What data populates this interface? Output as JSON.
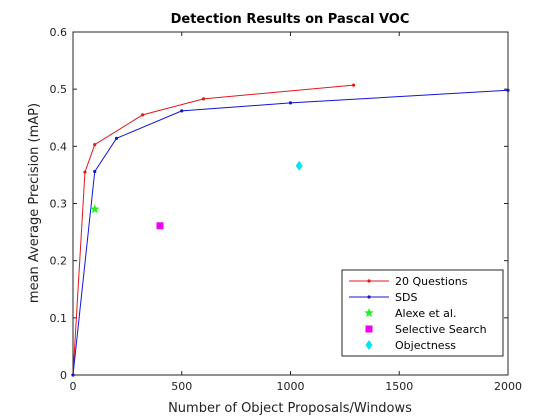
{
  "chart_data": {
    "type": "line",
    "title": "Detection Results on Pascal VOC",
    "xlabel": "Number of Object Proposals/Windows",
    "ylabel": "mean Average Precision (mAP)",
    "xlim": [
      0,
      2000
    ],
    "ylim": [
      0,
      0.6
    ],
    "xticks": [
      0,
      500,
      1000,
      1500,
      2000
    ],
    "xtick_labels": [
      "0",
      "500",
      "1000",
      "1500",
      "2000"
    ],
    "yticks": [
      0,
      0.1,
      0.2,
      0.3,
      0.4,
      0.5,
      0.6
    ],
    "ytick_labels": [
      "0",
      "0.1",
      "0.2",
      "0.3",
      "0.4",
      "0.5",
      "0.6"
    ],
    "grid": false,
    "legend_position": "bottom-right",
    "series": [
      {
        "name": "20 Questions",
        "kind": "line",
        "color": "#e4181c",
        "marker": "dot",
        "x": [
          0,
          55,
          100,
          320,
          600,
          1290
        ],
        "y": [
          0,
          0.355,
          0.403,
          0.455,
          0.483,
          0.507
        ]
      },
      {
        "name": "SDS",
        "kind": "line",
        "color": "#1414d8",
        "marker": "dot",
        "x": [
          0,
          100,
          200,
          500,
          1000,
          2000
        ],
        "y": [
          0,
          0.356,
          0.414,
          0.462,
          0.476,
          0.498
        ]
      },
      {
        "name": "Alexe et al.",
        "kind": "point",
        "color": "#22ee22",
        "marker": "star",
        "x": [
          100
        ],
        "y": [
          0.29
        ]
      },
      {
        "name": "Selective Search",
        "kind": "point",
        "color": "#ee00ee",
        "marker": "square",
        "x": [
          400
        ],
        "y": [
          0.261
        ]
      },
      {
        "name": "Objectness",
        "kind": "point",
        "color": "#00e8ee",
        "marker": "diamond",
        "x": [
          1040
        ],
        "y": [
          0.366
        ]
      }
    ]
  }
}
